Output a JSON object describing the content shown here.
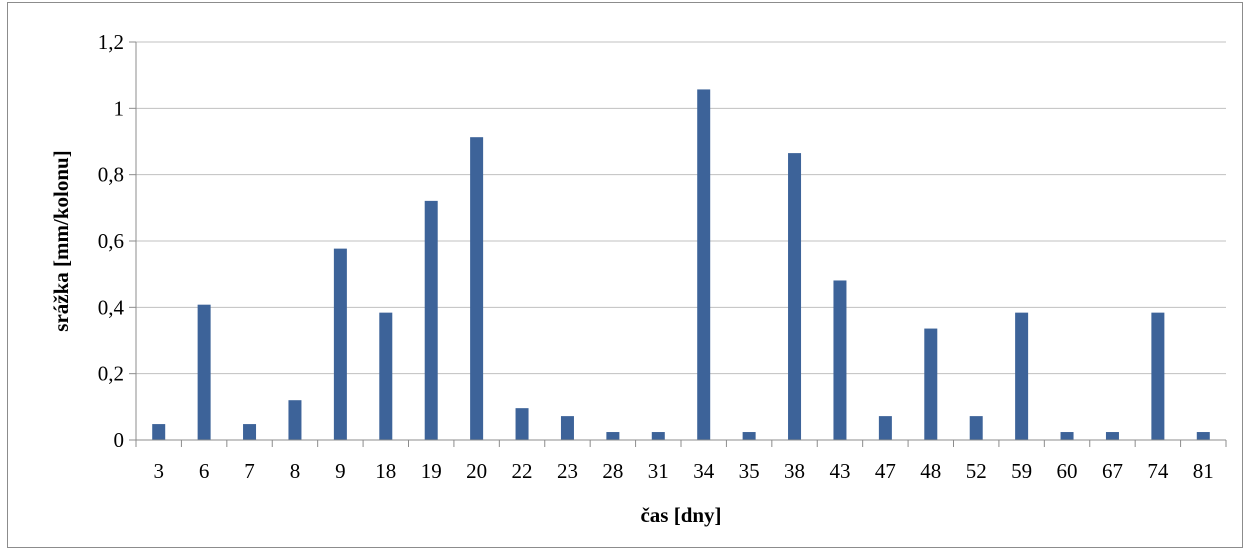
{
  "chart_data": {
    "type": "bar",
    "title": "",
    "xlabel": "čas [dny]",
    "ylabel": "srážka [mm/kolonu]",
    "ylim": [
      0,
      1.2
    ],
    "yticks": [
      0,
      0.2,
      0.4,
      0.6,
      0.8,
      1.0,
      1.2
    ],
    "ytick_labels": [
      "0",
      "0,2",
      "0,4",
      "0,6",
      "0,8",
      "1",
      "1,2"
    ],
    "categories": [
      "3",
      "6",
      "7",
      "8",
      "9",
      "18",
      "19",
      "20",
      "22",
      "23",
      "28",
      "31",
      "34",
      "35",
      "38",
      "43",
      "47",
      "48",
      "52",
      "59",
      "60",
      "67",
      "74",
      "81"
    ],
    "values": [
      0.048,
      0.408,
      0.048,
      0.12,
      0.577,
      0.384,
      0.721,
      0.913,
      0.096,
      0.072,
      0.024,
      0.024,
      1.057,
      0.024,
      0.865,
      0.481,
      0.072,
      0.336,
      0.072,
      0.384,
      0.024,
      0.024,
      0.384,
      0.024
    ],
    "grid": true,
    "legend": "none",
    "bar_color": "#3d6399",
    "grid_color": "#c0c0c0",
    "axis_color": "#8c8c8c"
  }
}
